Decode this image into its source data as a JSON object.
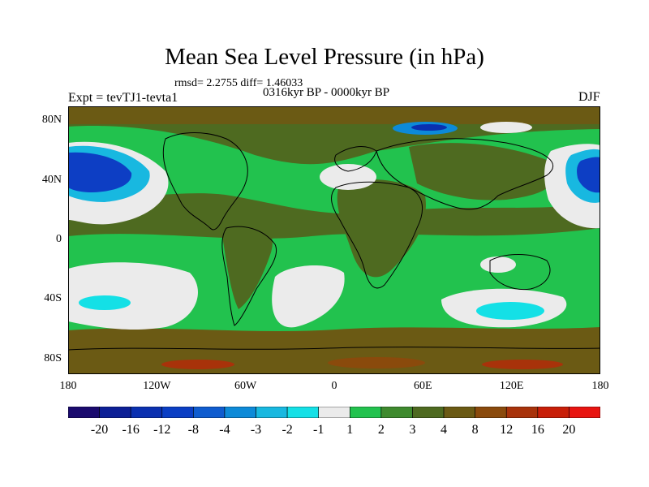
{
  "title": "Mean Sea Level Pressure (in hPa)",
  "rmsd_text": "rmsd= 2.2755 diff= 1.46033",
  "period": "0316kyr BP - 0000kyr BP",
  "experiment": "Expt = tevTJ1-tevta1",
  "season": "DJF",
  "map": {
    "projection": "cylindrical equidistant",
    "lon_range": [
      -180,
      180
    ],
    "lat_range": [
      -90,
      90
    ],
    "y_ticks": [
      {
        "label": "80N",
        "lat": 80
      },
      {
        "label": "40N",
        "lat": 40
      },
      {
        "label": "0",
        "lat": 0
      },
      {
        "label": "40S",
        "lat": -40
      },
      {
        "label": "80S",
        "lat": -80
      }
    ],
    "x_ticks": [
      {
        "label": "180",
        "lon": -180
      },
      {
        "label": "120W",
        "lon": -120
      },
      {
        "label": "60W",
        "lon": -60
      },
      {
        "label": "0",
        "lon": 0
      },
      {
        "label": "60E",
        "lon": 60
      },
      {
        "label": "120E",
        "lon": 120
      },
      {
        "label": "180",
        "lon": 180
      }
    ]
  },
  "colorbar": {
    "colors": [
      "#1a0a6e",
      "#0c1f96",
      "#0a30b0",
      "#0a3ec4",
      "#0f5ccf",
      "#0d8ad8",
      "#18b8e0",
      "#14e0e6",
      "#ebebeb",
      "#22c24e",
      "#3e8a2e",
      "#4e6a20",
      "#6b5a14",
      "#8a4a0c",
      "#a8320a",
      "#c81e08",
      "#e81410"
    ],
    "labels": [
      "-20",
      "-16",
      "-12",
      "-8",
      "-4",
      "-3",
      "-2",
      "-1",
      "1",
      "2",
      "3",
      "4",
      "8",
      "12",
      "16",
      "20"
    ]
  }
}
